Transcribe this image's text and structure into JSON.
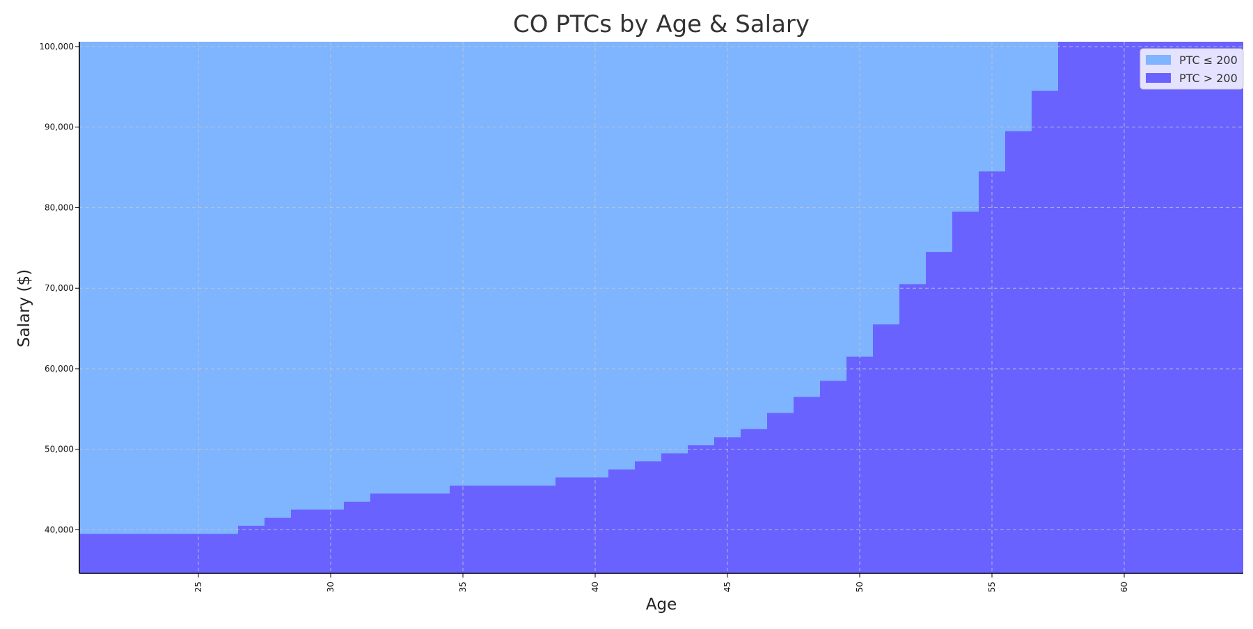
{
  "chart_data": {
    "type": "area",
    "title": "CO PTCs by Age & Salary",
    "xlabel": "Age",
    "ylabel": "Salary ($)",
    "xlim": [
      20.5,
      64.5
    ],
    "ylim": [
      34600,
      100600
    ],
    "xticks": [
      25,
      30,
      35,
      40,
      45,
      50,
      55,
      60
    ],
    "yticks": [
      40000,
      50000,
      60000,
      70000,
      80000,
      90000,
      100000
    ],
    "ytick_labels": [
      "40,000",
      "50,000",
      "60,000",
      "70,000",
      "80,000",
      "90,000",
      "100,000"
    ],
    "grid": true,
    "legend_position": "top-right",
    "series": [
      {
        "name": "PTC ≤ 200",
        "color": "#7fb4ff"
      },
      {
        "name": "PTC > 200",
        "color": "#6a62ff"
      }
    ],
    "x": [
      21,
      22,
      23,
      24,
      25,
      26,
      27,
      28,
      29,
      30,
      31,
      32,
      33,
      34,
      35,
      36,
      37,
      38,
      39,
      40,
      41,
      42,
      43,
      44,
      45,
      46,
      47,
      48,
      49,
      50,
      51,
      52,
      53,
      54,
      55,
      56,
      57,
      58,
      59,
      60,
      61,
      62,
      63,
      64
    ],
    "threshold_salary": [
      39500,
      39500,
      39500,
      39500,
      39500,
      39500,
      40500,
      41500,
      42500,
      42500,
      43500,
      44500,
      44500,
      44500,
      45500,
      45500,
      45500,
      45500,
      46500,
      46500,
      47500,
      48500,
      49500,
      50500,
      51500,
      52500,
      54500,
      56500,
      58500,
      61500,
      65500,
      70500,
      74500,
      79500,
      84500,
      89500,
      94500,
      100600,
      100600,
      100600,
      100600,
      100600,
      100600,
      100600
    ]
  }
}
